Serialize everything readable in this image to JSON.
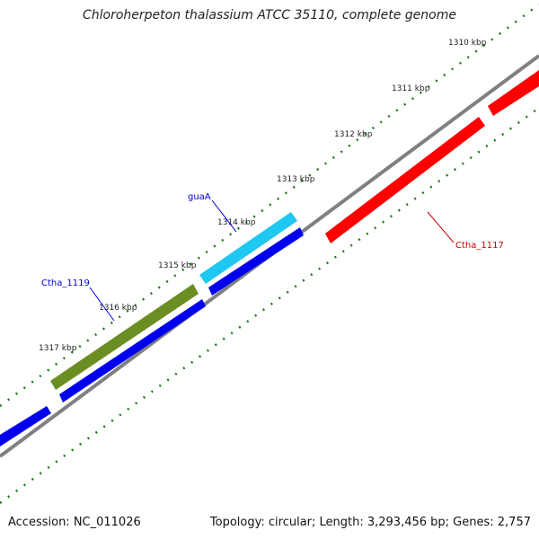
{
  "title": "Chloroherpeton thalassium ATCC 35110, complete genome",
  "accession_text": "Accession: NC_011026",
  "topology_text": "Topology: circular; Length: 3,293,456 bp; Genes: 2,757",
  "tick_labels": [
    "1310 kbp",
    "1311 kbp",
    "1312 kbp",
    "1313 kbp",
    "1314 kbp",
    "1315 kbp",
    "1316 kbp",
    "1317 kbp"
  ],
  "gene_labels": [
    {
      "text": "guaA",
      "color": "#0000cc"
    },
    {
      "text": "Ctha_1119",
      "color": "#0000cc"
    },
    {
      "text": "Ctha_1117",
      "color": "#cc0000"
    }
  ],
  "colors": {
    "backbone": "#808080",
    "tick_marks": "#1a7a1a",
    "reverse_strand_genes": "#0000ee",
    "gene_guaA": "#1ec8f0",
    "gene_Ctha_1119": "#6b8e23",
    "gene_Ctha_1117": "#ff0000"
  }
}
